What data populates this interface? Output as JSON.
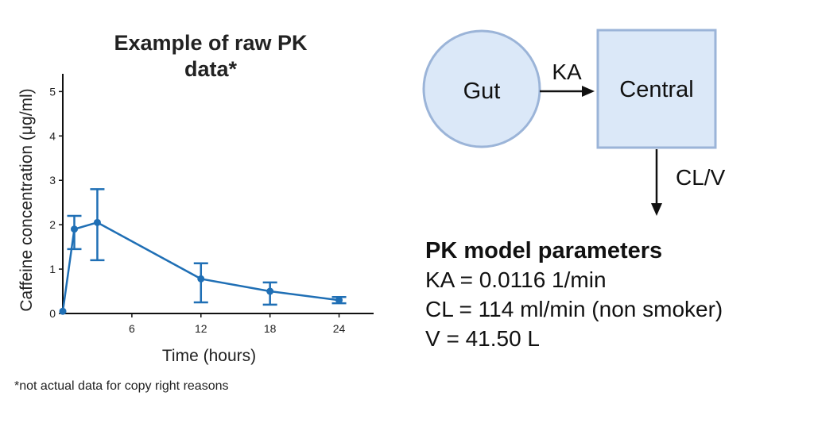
{
  "chart_data": {
    "type": "line",
    "title_lines": [
      "Example of raw PK",
      "data*"
    ],
    "xlabel": "Time (hours)",
    "ylabel": "Caffeine concentration (μg/ml)",
    "xlim": [
      0,
      27
    ],
    "ylim": [
      0,
      5.4
    ],
    "xticks": [
      6,
      12,
      18,
      24
    ],
    "yticks": [
      0,
      1,
      2,
      3,
      4,
      5
    ],
    "series": [
      {
        "color": "#1f6fb5",
        "x": [
          0,
          1,
          3,
          12,
          18,
          24
        ],
        "y": [
          0.05,
          1.9,
          2.05,
          0.78,
          0.5,
          0.3
        ],
        "err_lo": [
          0.0,
          0.45,
          0.85,
          0.53,
          0.3,
          0.07
        ],
        "err_hi": [
          0.0,
          0.3,
          0.75,
          0.35,
          0.2,
          0.07
        ]
      }
    ],
    "grid": false,
    "footnote": "*not actual data for copy right reasons"
  },
  "diagram": {
    "gut_label": "Gut",
    "central_label": "Central",
    "ka_label": "KA",
    "clv_label": "CL/V",
    "fill_color": "#dbe8f8",
    "stroke_color": "#9bb4d8"
  },
  "parameters": {
    "title": "PK model parameters",
    "lines": [
      "KA = 0.0116 1/min",
      "CL = 114 ml/min (non smoker)",
      "V = 41.50 L"
    ]
  }
}
